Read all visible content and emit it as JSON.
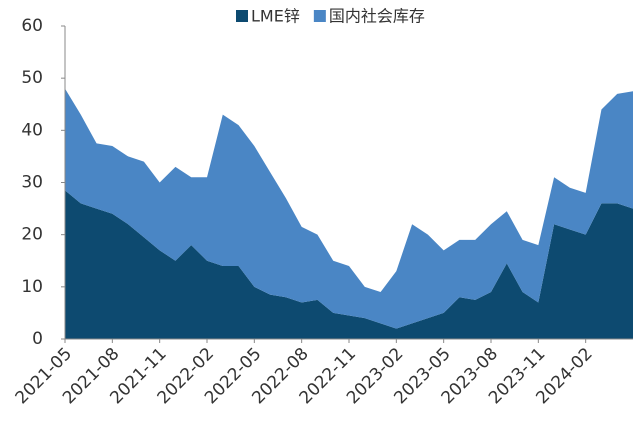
{
  "chart_data": {
    "type": "stacked_area",
    "x": [
      "2021-05",
      "2021-06",
      "2021-07",
      "2021-08",
      "2021-09",
      "2021-10",
      "2021-11",
      "2021-12",
      "2022-01",
      "2022-02",
      "2022-03",
      "2022-04",
      "2022-05",
      "2022-06",
      "2022-07",
      "2022-08",
      "2022-09",
      "2022-10",
      "2022-11",
      "2022-12",
      "2023-01",
      "2023-02",
      "2023-03",
      "2023-04",
      "2023-05",
      "2023-06",
      "2023-07",
      "2023-08",
      "2023-09",
      "2023-10",
      "2023-11",
      "2023-12",
      "2024-01",
      "2024-02",
      "2024-03",
      "2024-04",
      "2024-05"
    ],
    "series": [
      {
        "name": "LME锌",
        "color": "#0d4a70",
        "values": [
          28.5,
          26,
          25,
          24,
          22,
          19.5,
          17,
          15,
          18,
          15,
          14,
          14,
          10,
          8.5,
          8,
          7,
          7.5,
          5,
          4.5,
          4,
          3,
          2,
          3,
          4,
          5,
          8,
          7.5,
          9,
          14.5,
          9,
          7,
          22,
          21,
          20,
          26,
          26,
          25
        ]
      },
      {
        "name": "国内社会库存",
        "color": "#4a86c5",
        "values": [
          19.5,
          17,
          12.5,
          13,
          13,
          14.5,
          13,
          18,
          13,
          16,
          29,
          27,
          27,
          23.5,
          19,
          14.5,
          12.5,
          10,
          9.5,
          6,
          6,
          11,
          19,
          16,
          12,
          11,
          11.5,
          13,
          10,
          10,
          11,
          9,
          8,
          8,
          18,
          21,
          22.5
        ]
      }
    ],
    "xlim": [
      "2021-05",
      "2024-05"
    ],
    "xticks": [
      "2021-05",
      "2021-08",
      "2021-11",
      "2022-02",
      "2022-05",
      "2022-08",
      "2022-11",
      "2023-02",
      "2023-05",
      "2023-08",
      "2023-11",
      "2024-02"
    ],
    "ylim": [
      0,
      60
    ],
    "yticks": [
      0,
      10,
      20,
      30,
      40,
      50,
      60
    ],
    "grid": false,
    "legend": "top"
  }
}
